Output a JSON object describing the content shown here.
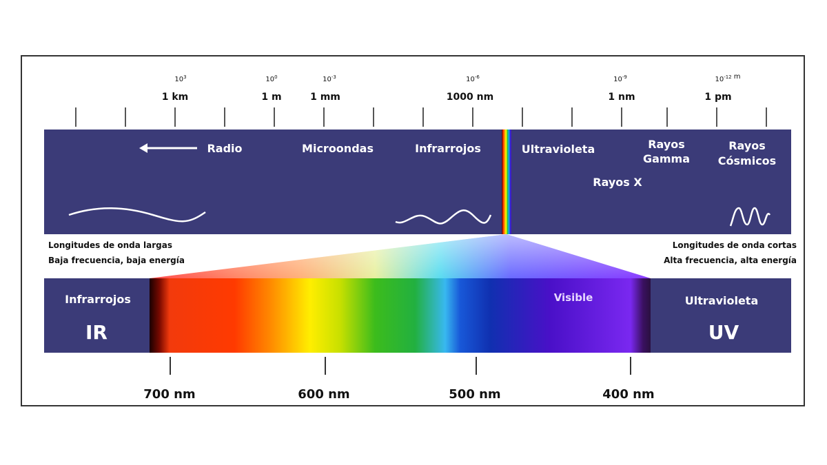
{
  "colors": {
    "band": "#3b3b78",
    "text_on_band": "#ffffff",
    "text_dark": "#111111",
    "tick": "#555555",
    "visible_label": "#e8d8ff"
  },
  "top_scale": {
    "exponents": [
      {
        "base": "10",
        "exp": "3"
      },
      {
        "base": "10",
        "exp": "0"
      },
      {
        "base": "10",
        "exp": "-3"
      },
      {
        "base": "10",
        "exp": "-6"
      },
      {
        "base": "10",
        "exp": "-9"
      },
      {
        "base": "10",
        "exp": "-12",
        "suffix": " m"
      }
    ],
    "units": [
      "1 km",
      "1 m",
      "1 mm",
      "1000 nm",
      "1 nm",
      "1 pm"
    ]
  },
  "top_band": {
    "labels": {
      "radio": "Radio",
      "microondas": "Microondas",
      "infrarrojos": "Infrarrojos",
      "ultravioleta": "Ultravioleta",
      "rayos_gamma_1": "Rayos",
      "rayos_gamma_2": "Gamma",
      "rayos_cosmicos_1": "Rayos",
      "rayos_cosmicos_2": "Cósmicos",
      "rayos_x": "Rayos X"
    },
    "wave_icons": [
      "long-wave-icon",
      "medium-wave-icon",
      "short-wave-icon"
    ]
  },
  "notes": {
    "left_1": "Longitudes de onda largas",
    "left_2": "Baja frecuencia, baja energía",
    "right_1": "Longitudes de onda cortas",
    "right_2": "Alta frecuencia, alta energía"
  },
  "bottom_band": {
    "ir_title": "Infrarrojos",
    "ir_abbr": "IR",
    "uv_title": "Ultravioleta",
    "uv_abbr": "UV",
    "visible": "Visible"
  },
  "bottom_scale": [
    "700 nm",
    "600 nm",
    "500 nm",
    "400 nm"
  ]
}
